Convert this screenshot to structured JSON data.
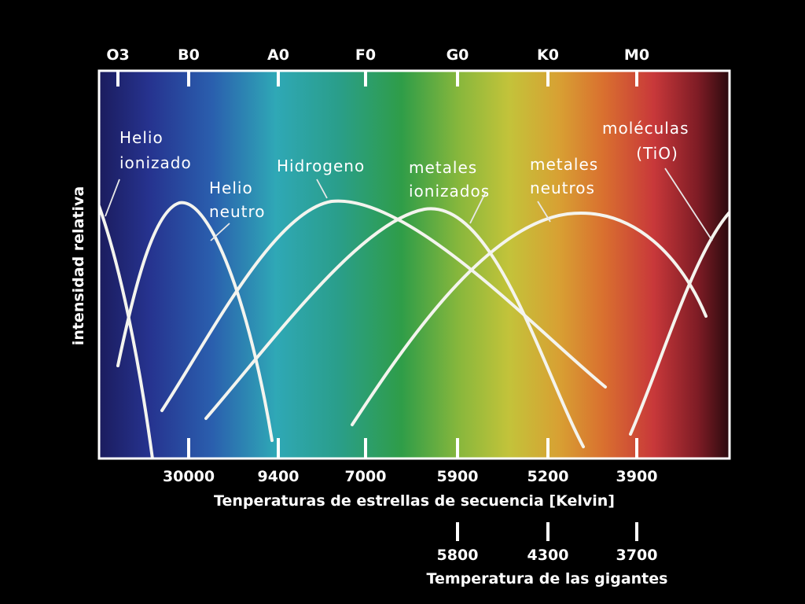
{
  "chart_data": {
    "type": "line",
    "spectral_classes": [
      "O3",
      "B0",
      "A0",
      "F0",
      "G0",
      "K0",
      "M0"
    ],
    "x_ticks": [
      "30000",
      "9400",
      "7000",
      "5900",
      "5200",
      "3900"
    ],
    "xlabel": "Tenperaturas de estrellas de secuencia [Kelvin]",
    "ylabel": "intensidad relativa",
    "giant_ticks": [
      "5800",
      "4300",
      "3700"
    ],
    "giant_label": "Temperatura de las gigantes",
    "grid": false,
    "series": [
      {
        "name": "Helio ionizado",
        "line1": "Helio",
        "line2": "ionizado"
      },
      {
        "name": "Helio neutro",
        "line1": "Helio",
        "line2": "neutro"
      },
      {
        "name": "Hidrogeno",
        "line1": "Hidrogeno",
        "line2": ""
      },
      {
        "name": "metales ionizados",
        "line1": "metales",
        "line2": "ionizados"
      },
      {
        "name": "metales neutros",
        "line1": "metales",
        "line2": "neutros"
      },
      {
        "name": "moléculas (TiO)",
        "line1": "moléculas",
        "line2": "(TiO)"
      }
    ]
  }
}
